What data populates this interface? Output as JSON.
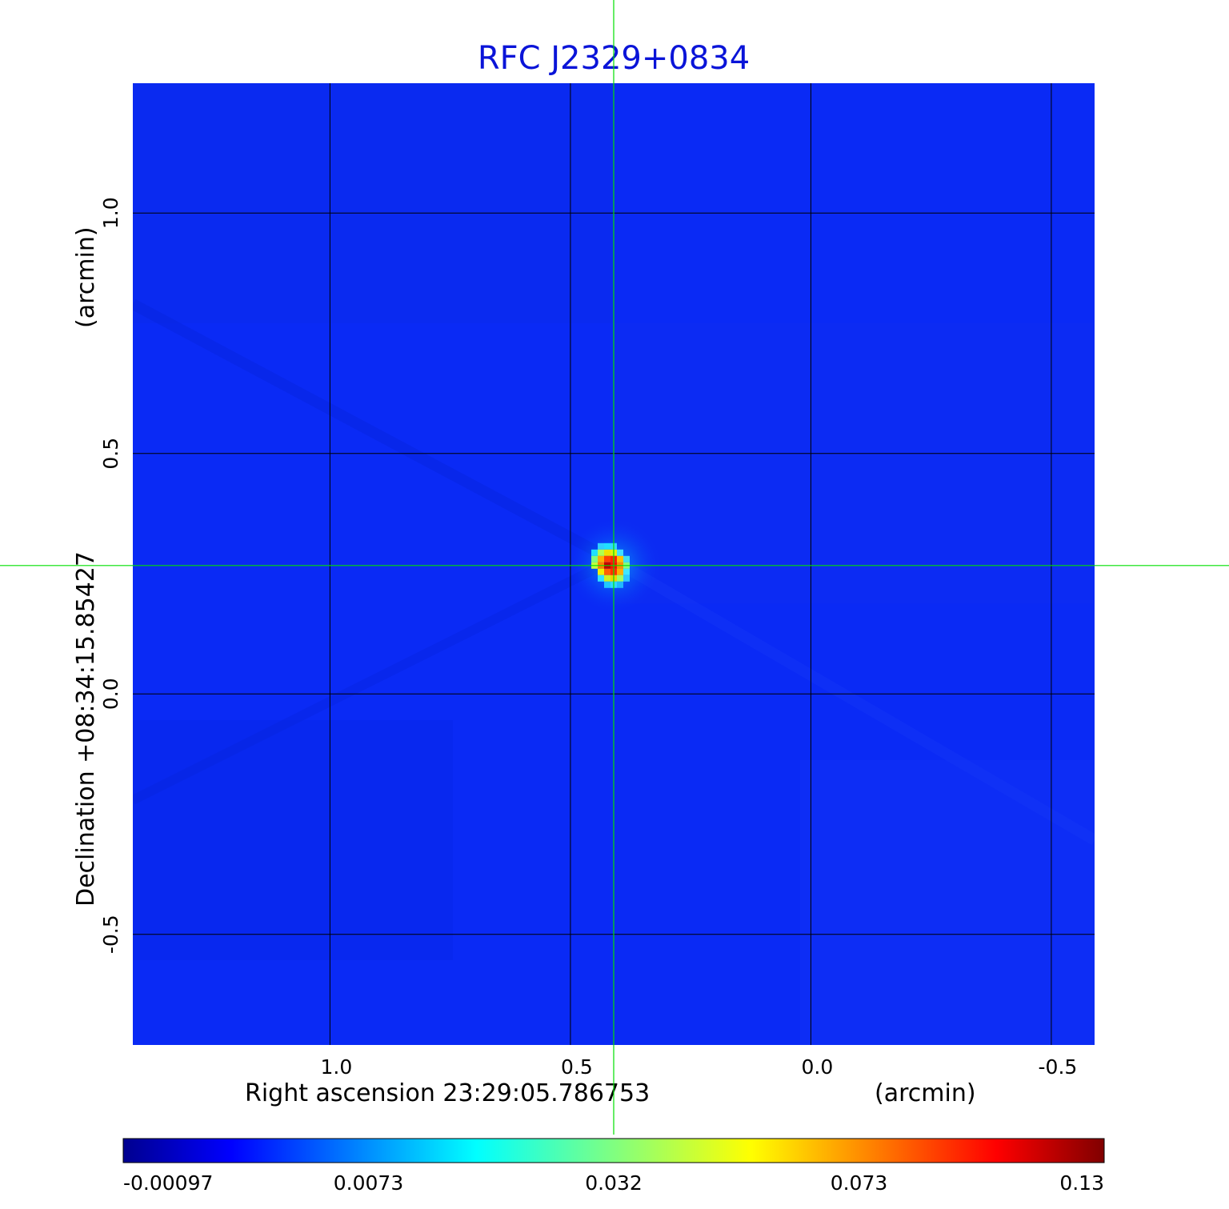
{
  "chart_data": {
    "type": "heatmap",
    "title": "RFC J2329+0834",
    "xlabel": "Right ascension  23:29:05.786753",
    "xunit": "(arcmin)",
    "ylabel": "Declination  +08:34:15.85427",
    "yunit": "(arcmin)",
    "xlim": [
      1.41,
      -0.59
    ],
    "ylim": [
      -0.73,
      1.27
    ],
    "x_ticks": [
      {
        "value": 1.0,
        "label": "1.0"
      },
      {
        "value": 0.5,
        "label": "0.5"
      },
      {
        "value": 0.0,
        "label": "0.0"
      },
      {
        "value": -0.5,
        "label": "-0.5"
      }
    ],
    "y_ticks": [
      {
        "value": 1.0,
        "label": "1.0"
      },
      {
        "value": 0.5,
        "label": "0.5"
      },
      {
        "value": 0.0,
        "label": "0.0"
      },
      {
        "value": -0.5,
        "label": "-0.5"
      }
    ],
    "grid": true,
    "crosshair": {
      "x": 0.41,
      "y": 0.267
    },
    "source": {
      "x": 0.41,
      "y": 0.267,
      "peak": 0.13
    },
    "colormap": "jet",
    "colorbar": {
      "range": [
        -0.00097,
        0.13
      ],
      "tick_labels": [
        "-0.00097",
        "0.0073",
        "0.032",
        "0.073",
        "0.13"
      ]
    },
    "colors": {
      "title": "#0a14d8",
      "background_field": "#0a2af5",
      "crosshair": "#00e000",
      "grid": "#000000"
    }
  }
}
